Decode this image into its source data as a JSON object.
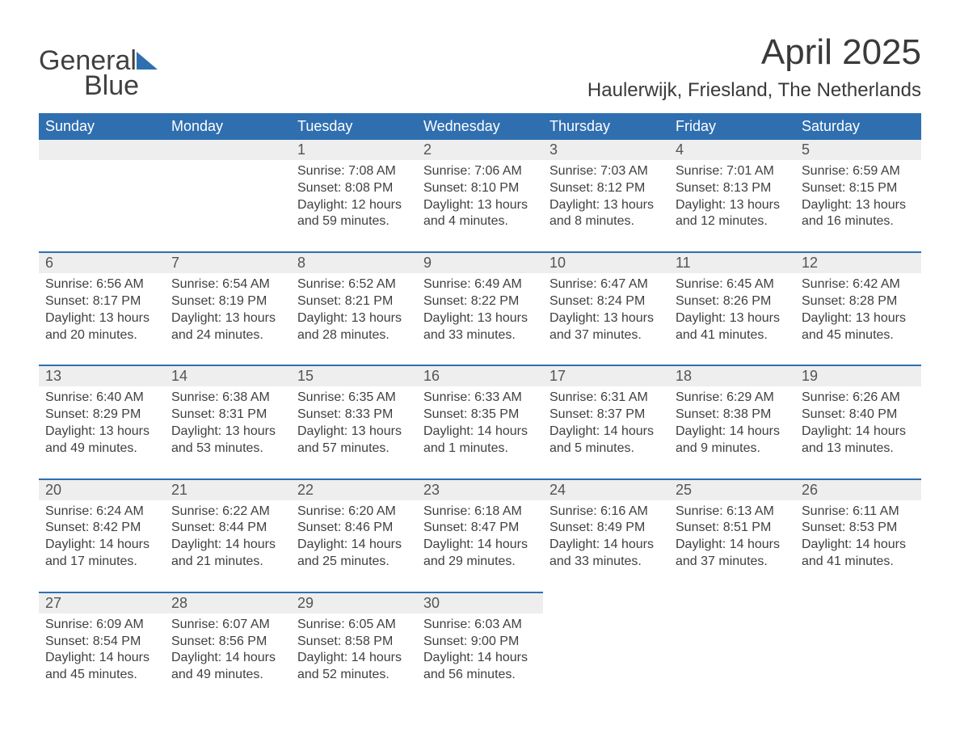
{
  "logo": {
    "text_a": "General",
    "text_b": "Blue",
    "shape_color": "#2f6fb0"
  },
  "title": "April 2025",
  "location": "Haulerwijk, Friesland, The Netherlands",
  "colors": {
    "header_bg": "#2f6fb0",
    "header_text": "#ffffff",
    "daynum_bg": "#eeeeee",
    "divider": "#2f6fb0",
    "body_text": "#404040",
    "page_bg": "#ffffff"
  },
  "typography": {
    "title_fontsize_pt": 33,
    "location_fontsize_pt": 18,
    "header_fontsize_pt": 14,
    "daynum_fontsize_pt": 14,
    "body_fontsize_pt": 12,
    "font_family": "Arial"
  },
  "layout": {
    "columns": 7,
    "rows": 5,
    "first_day_index": 2
  },
  "weekdays": [
    "Sunday",
    "Monday",
    "Tuesday",
    "Wednesday",
    "Thursday",
    "Friday",
    "Saturday"
  ],
  "days": [
    {
      "n": "1",
      "sunrise": "7:08 AM",
      "sunset": "8:08 PM",
      "day_h": "12",
      "day_m": "59"
    },
    {
      "n": "2",
      "sunrise": "7:06 AM",
      "sunset": "8:10 PM",
      "day_h": "13",
      "day_m": "4"
    },
    {
      "n": "3",
      "sunrise": "7:03 AM",
      "sunset": "8:12 PM",
      "day_h": "13",
      "day_m": "8"
    },
    {
      "n": "4",
      "sunrise": "7:01 AM",
      "sunset": "8:13 PM",
      "day_h": "13",
      "day_m": "12"
    },
    {
      "n": "5",
      "sunrise": "6:59 AM",
      "sunset": "8:15 PM",
      "day_h": "13",
      "day_m": "16"
    },
    {
      "n": "6",
      "sunrise": "6:56 AM",
      "sunset": "8:17 PM",
      "day_h": "13",
      "day_m": "20"
    },
    {
      "n": "7",
      "sunrise": "6:54 AM",
      "sunset": "8:19 PM",
      "day_h": "13",
      "day_m": "24"
    },
    {
      "n": "8",
      "sunrise": "6:52 AM",
      "sunset": "8:21 PM",
      "day_h": "13",
      "day_m": "28"
    },
    {
      "n": "9",
      "sunrise": "6:49 AM",
      "sunset": "8:22 PM",
      "day_h": "13",
      "day_m": "33"
    },
    {
      "n": "10",
      "sunrise": "6:47 AM",
      "sunset": "8:24 PM",
      "day_h": "13",
      "day_m": "37"
    },
    {
      "n": "11",
      "sunrise": "6:45 AM",
      "sunset": "8:26 PM",
      "day_h": "13",
      "day_m": "41"
    },
    {
      "n": "12",
      "sunrise": "6:42 AM",
      "sunset": "8:28 PM",
      "day_h": "13",
      "day_m": "45"
    },
    {
      "n": "13",
      "sunrise": "6:40 AM",
      "sunset": "8:29 PM",
      "day_h": "13",
      "day_m": "49"
    },
    {
      "n": "14",
      "sunrise": "6:38 AM",
      "sunset": "8:31 PM",
      "day_h": "13",
      "day_m": "53"
    },
    {
      "n": "15",
      "sunrise": "6:35 AM",
      "sunset": "8:33 PM",
      "day_h": "13",
      "day_m": "57"
    },
    {
      "n": "16",
      "sunrise": "6:33 AM",
      "sunset": "8:35 PM",
      "day_h": "14",
      "day_m": "1"
    },
    {
      "n": "17",
      "sunrise": "6:31 AM",
      "sunset": "8:37 PM",
      "day_h": "14",
      "day_m": "5"
    },
    {
      "n": "18",
      "sunrise": "6:29 AM",
      "sunset": "8:38 PM",
      "day_h": "14",
      "day_m": "9"
    },
    {
      "n": "19",
      "sunrise": "6:26 AM",
      "sunset": "8:40 PM",
      "day_h": "14",
      "day_m": "13"
    },
    {
      "n": "20",
      "sunrise": "6:24 AM",
      "sunset": "8:42 PM",
      "day_h": "14",
      "day_m": "17"
    },
    {
      "n": "21",
      "sunrise": "6:22 AM",
      "sunset": "8:44 PM",
      "day_h": "14",
      "day_m": "21"
    },
    {
      "n": "22",
      "sunrise": "6:20 AM",
      "sunset": "8:46 PM",
      "day_h": "14",
      "day_m": "25"
    },
    {
      "n": "23",
      "sunrise": "6:18 AM",
      "sunset": "8:47 PM",
      "day_h": "14",
      "day_m": "29"
    },
    {
      "n": "24",
      "sunrise": "6:16 AM",
      "sunset": "8:49 PM",
      "day_h": "14",
      "day_m": "33"
    },
    {
      "n": "25",
      "sunrise": "6:13 AM",
      "sunset": "8:51 PM",
      "day_h": "14",
      "day_m": "37"
    },
    {
      "n": "26",
      "sunrise": "6:11 AM",
      "sunset": "8:53 PM",
      "day_h": "14",
      "day_m": "41"
    },
    {
      "n": "27",
      "sunrise": "6:09 AM",
      "sunset": "8:54 PM",
      "day_h": "14",
      "day_m": "45"
    },
    {
      "n": "28",
      "sunrise": "6:07 AM",
      "sunset": "8:56 PM",
      "day_h": "14",
      "day_m": "49"
    },
    {
      "n": "29",
      "sunrise": "6:05 AM",
      "sunset": "8:58 PM",
      "day_h": "14",
      "day_m": "52"
    },
    {
      "n": "30",
      "sunrise": "6:03 AM",
      "sunset": "9:00 PM",
      "day_h": "14",
      "day_m": "56"
    }
  ],
  "labels": {
    "sunrise_prefix": "Sunrise: ",
    "sunset_prefix": "Sunset: ",
    "daylight_prefix": "Daylight: ",
    "hours_word": " hours",
    "and_word": "and ",
    "minutes_suffix": " minutes."
  }
}
